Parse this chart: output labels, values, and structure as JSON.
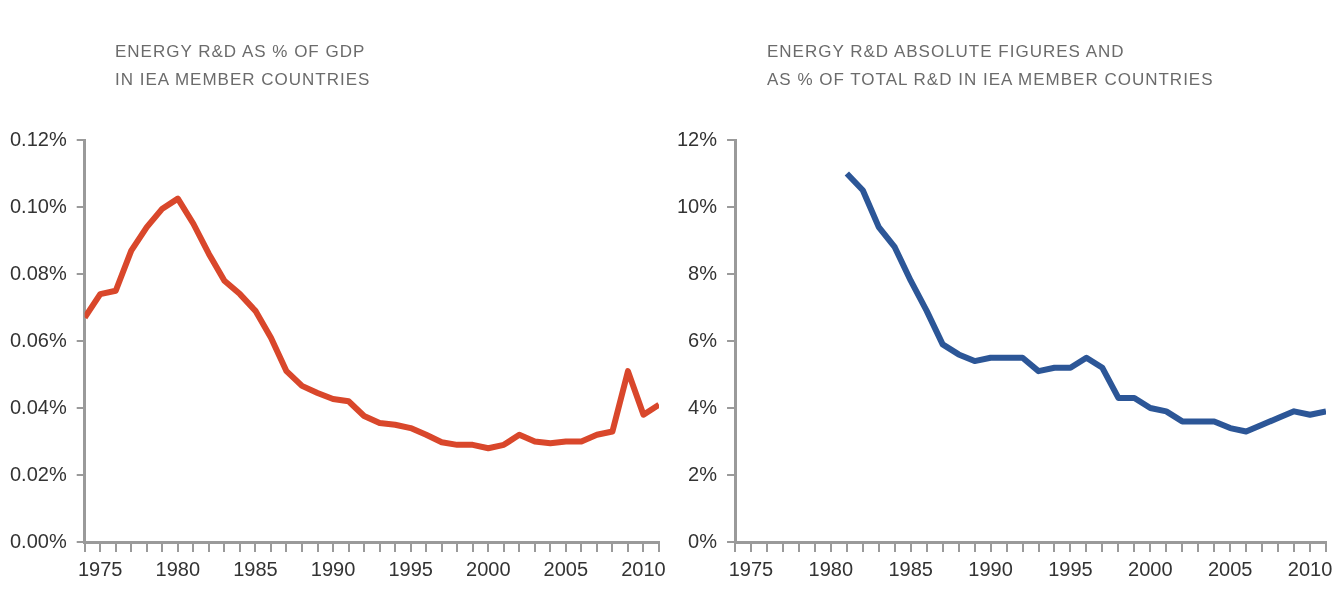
{
  "chart_data": [
    {
      "type": "line",
      "title": "ENERGY R&D AS % OF GDP\nIN IEA MEMBER COUNTRIES",
      "x": [
        1974,
        1975,
        1976,
        1977,
        1978,
        1979,
        1980,
        1981,
        1982,
        1983,
        1984,
        1985,
        1986,
        1987,
        1988,
        1989,
        1990,
        1991,
        1992,
        1993,
        1994,
        1995,
        1996,
        1997,
        1998,
        1999,
        2000,
        2001,
        2002,
        2003,
        2004,
        2005,
        2006,
        2007,
        2008,
        2009,
        2010,
        2011
      ],
      "series": [
        {
          "color": "#d9472b",
          "values": [
            0.067,
            0.074,
            0.075,
            0.087,
            0.094,
            0.0995,
            0.1025,
            0.095,
            0.086,
            0.078,
            0.074,
            0.069,
            0.061,
            0.051,
            0.0466,
            0.0445,
            0.0427,
            0.042,
            0.0376,
            0.0355,
            0.035,
            0.034,
            0.032,
            0.0298,
            0.029,
            0.029,
            0.028,
            0.029,
            0.032,
            0.03,
            0.0295,
            0.03,
            0.03,
            0.032,
            0.033,
            0.051,
            0.038,
            0.041
          ]
        }
      ],
      "xlim": [
        1974,
        2011
      ],
      "xticks": [
        {
          "value": 1974,
          "label": null
        },
        1975,
        {
          "value": 1976,
          "label": null
        },
        {
          "value": 1977,
          "label": null
        },
        {
          "value": 1978,
          "label": null
        },
        {
          "value": 1979,
          "label": null
        },
        1980,
        {
          "value": 1981,
          "label": null
        },
        {
          "value": 1982,
          "label": null
        },
        {
          "value": 1983,
          "label": null
        },
        {
          "value": 1984,
          "label": null
        },
        1985,
        {
          "value": 1986,
          "label": null
        },
        {
          "value": 1987,
          "label": null
        },
        {
          "value": 1988,
          "label": null
        },
        {
          "value": 1989,
          "label": null
        },
        1990,
        {
          "value": 1991,
          "label": null
        },
        {
          "value": 1992,
          "label": null
        },
        {
          "value": 1993,
          "label": null
        },
        {
          "value": 1994,
          "label": null
        },
        1995,
        {
          "value": 1996,
          "label": null
        },
        {
          "value": 1997,
          "label": null
        },
        {
          "value": 1998,
          "label": null
        },
        {
          "value": 1999,
          "label": null
        },
        2000,
        {
          "value": 2001,
          "label": null
        },
        {
          "value": 2002,
          "label": null
        },
        {
          "value": 2003,
          "label": null
        },
        {
          "value": 2004,
          "label": null
        },
        2005,
        {
          "value": 2006,
          "label": null
        },
        {
          "value": 2007,
          "label": null
        },
        {
          "value": 2008,
          "label": null
        },
        {
          "value": 2009,
          "label": null
        },
        2010,
        {
          "value": 2011,
          "label": null
        }
      ],
      "ylim": [
        0,
        0.12
      ],
      "yticks": [
        {
          "value": 0,
          "label": "0.00%"
        },
        {
          "value": 0.02,
          "label": "0.02%"
        },
        {
          "value": 0.04,
          "label": "0.04%"
        },
        {
          "value": 0.06,
          "label": "0.06%"
        },
        {
          "value": 0.08,
          "label": "0.08%"
        },
        {
          "value": 0.1,
          "label": "0.10%"
        },
        {
          "value": 0.12,
          "label": "0.12%"
        }
      ],
      "grid": false,
      "legend": false,
      "marker": "none",
      "line_style": "solid"
    },
    {
      "type": "line",
      "title": "ENERGY R&D ABSOLUTE FIGURES AND\nAS % OF TOTAL R&D IN IEA MEMBER COUNTRIES",
      "x": [
        1981,
        1982,
        1983,
        1984,
        1985,
        1986,
        1987,
        1988,
        1989,
        1990,
        1991,
        1992,
        1993,
        1994,
        1995,
        1996,
        1997,
        1998,
        1999,
        2000,
        2001,
        2002,
        2003,
        2004,
        2005,
        2006,
        2007,
        2008,
        2009,
        2010,
        2011
      ],
      "series": [
        {
          "color": "#2c5697",
          "values": [
            11.0,
            10.5,
            9.4,
            8.8,
            7.8,
            6.9,
            5.9,
            5.6,
            5.4,
            5.5,
            5.5,
            5.5,
            5.1,
            5.2,
            5.2,
            5.5,
            5.2,
            4.3,
            4.3,
            4.0,
            3.9,
            3.6,
            3.6,
            3.6,
            3.4,
            3.3,
            3.5,
            3.7,
            3.9,
            3.8,
            3.9
          ]
        }
      ],
      "xlim": [
        1974,
        2011
      ],
      "xticks": [
        {
          "value": 1974,
          "label": null
        },
        1975,
        {
          "value": 1976,
          "label": null
        },
        {
          "value": 1977,
          "label": null
        },
        {
          "value": 1978,
          "label": null
        },
        {
          "value": 1979,
          "label": null
        },
        1980,
        {
          "value": 1981,
          "label": null
        },
        {
          "value": 1982,
          "label": null
        },
        {
          "value": 1983,
          "label": null
        },
        {
          "value": 1984,
          "label": null
        },
        1985,
        {
          "value": 1986,
          "label": null
        },
        {
          "value": 1987,
          "label": null
        },
        {
          "value": 1988,
          "label": null
        },
        {
          "value": 1989,
          "label": null
        },
        1990,
        {
          "value": 1991,
          "label": null
        },
        {
          "value": 1992,
          "label": null
        },
        {
          "value": 1993,
          "label": null
        },
        {
          "value": 1994,
          "label": null
        },
        1995,
        {
          "value": 1996,
          "label": null
        },
        {
          "value": 1997,
          "label": null
        },
        {
          "value": 1998,
          "label": null
        },
        {
          "value": 1999,
          "label": null
        },
        2000,
        {
          "value": 2001,
          "label": null
        },
        {
          "value": 2002,
          "label": null
        },
        {
          "value": 2003,
          "label": null
        },
        {
          "value": 2004,
          "label": null
        },
        2005,
        {
          "value": 2006,
          "label": null
        },
        {
          "value": 2007,
          "label": null
        },
        {
          "value": 2008,
          "label": null
        },
        {
          "value": 2009,
          "label": null
        },
        2010,
        {
          "value": 2011,
          "label": null
        }
      ],
      "ylim": [
        0,
        12
      ],
      "yticks": [
        {
          "value": 0,
          "label": "0%"
        },
        {
          "value": 2,
          "label": "2%"
        },
        {
          "value": 4,
          "label": "4%"
        },
        {
          "value": 6,
          "label": "6%"
        },
        {
          "value": 8,
          "label": "8%"
        },
        {
          "value": 10,
          "label": "10%"
        },
        {
          "value": 12,
          "label": "12%"
        }
      ],
      "grid": false,
      "legend": false,
      "marker": "none",
      "line_style": "solid"
    }
  ]
}
